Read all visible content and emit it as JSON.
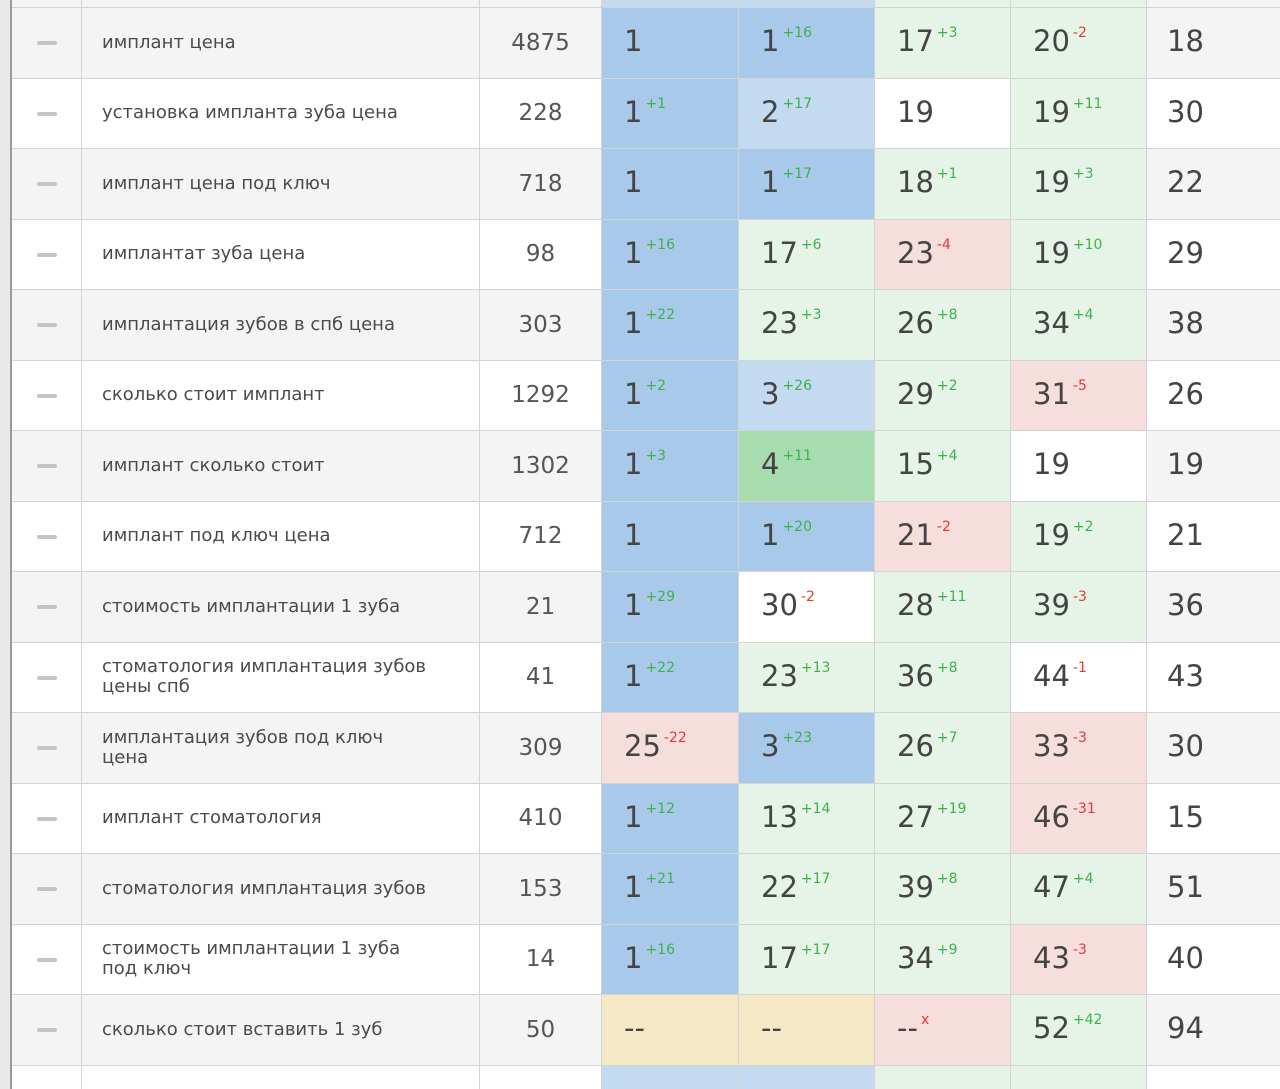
{
  "table": {
    "rows": [
      {
        "keyword": [
          "имплант цена"
        ],
        "frequency": "4875",
        "positions": [
          {
            "value": "1",
            "delta": "",
            "bg": "blue"
          },
          {
            "value": "1",
            "delta": "+16",
            "bg": "blue"
          },
          {
            "value": "17",
            "delta": "+3",
            "bg": "lightgreen"
          },
          {
            "value": "20",
            "delta": "-2",
            "bg": "lightgreen"
          }
        ],
        "last": "18"
      },
      {
        "keyword": [
          "установка импланта зуба цена"
        ],
        "frequency": "228",
        "positions": [
          {
            "value": "1",
            "delta": "+1",
            "bg": "blue"
          },
          {
            "value": "2",
            "delta": "+17",
            "bg": "lightblue"
          },
          {
            "value": "19",
            "delta": "",
            "bg": "white"
          },
          {
            "value": "19",
            "delta": "+11",
            "bg": "lightgreen"
          }
        ],
        "last": "30"
      },
      {
        "keyword": [
          "имплант цена под ключ"
        ],
        "frequency": "718",
        "positions": [
          {
            "value": "1",
            "delta": "",
            "bg": "blue"
          },
          {
            "value": "1",
            "delta": "+17",
            "bg": "blue"
          },
          {
            "value": "18",
            "delta": "+1",
            "bg": "lightgreen"
          },
          {
            "value": "19",
            "delta": "+3",
            "bg": "lightgreen"
          }
        ],
        "last": "22"
      },
      {
        "keyword": [
          "имплантат зуба цена"
        ],
        "frequency": "98",
        "positions": [
          {
            "value": "1",
            "delta": "+16",
            "bg": "blue"
          },
          {
            "value": "17",
            "delta": "+6",
            "bg": "lightgreen"
          },
          {
            "value": "23",
            "delta": "-4",
            "bg": "pink"
          },
          {
            "value": "19",
            "delta": "+10",
            "bg": "lightgreen"
          }
        ],
        "last": "29"
      },
      {
        "keyword": [
          "имплантация зубов в спб цена"
        ],
        "frequency": "303",
        "positions": [
          {
            "value": "1",
            "delta": "+22",
            "bg": "blue"
          },
          {
            "value": "23",
            "delta": "+3",
            "bg": "lightgreen"
          },
          {
            "value": "26",
            "delta": "+8",
            "bg": "lightgreen"
          },
          {
            "value": "34",
            "delta": "+4",
            "bg": "lightgreen"
          }
        ],
        "last": "38"
      },
      {
        "keyword": [
          "сколько стоит имплант"
        ],
        "frequency": "1292",
        "positions": [
          {
            "value": "1",
            "delta": "+2",
            "bg": "blue"
          },
          {
            "value": "3",
            "delta": "+26",
            "bg": "lightblue"
          },
          {
            "value": "29",
            "delta": "+2",
            "bg": "lightgreen"
          },
          {
            "value": "31",
            "delta": "-5",
            "bg": "pink"
          }
        ],
        "last": "26"
      },
      {
        "keyword": [
          "имплант сколько стоит"
        ],
        "frequency": "1302",
        "positions": [
          {
            "value": "1",
            "delta": "+3",
            "bg": "blue"
          },
          {
            "value": "4",
            "delta": "+11",
            "bg": "green"
          },
          {
            "value": "15",
            "delta": "+4",
            "bg": "lightgreen"
          },
          {
            "value": "19",
            "delta": "",
            "bg": "white"
          }
        ],
        "last": "19"
      },
      {
        "keyword": [
          "имплант под ключ цена"
        ],
        "frequency": "712",
        "positions": [
          {
            "value": "1",
            "delta": "",
            "bg": "blue"
          },
          {
            "value": "1",
            "delta": "+20",
            "bg": "blue"
          },
          {
            "value": "21",
            "delta": "-2",
            "bg": "pink"
          },
          {
            "value": "19",
            "delta": "+2",
            "bg": "lightgreen"
          }
        ],
        "last": "21"
      },
      {
        "keyword": [
          "стоимость имплантации 1 зуба"
        ],
        "frequency": "21",
        "positions": [
          {
            "value": "1",
            "delta": "+29",
            "bg": "blue"
          },
          {
            "value": "30",
            "delta": "-2",
            "bg": "white"
          },
          {
            "value": "28",
            "delta": "+11",
            "bg": "lightgreen"
          },
          {
            "value": "39",
            "delta": "-3",
            "bg": "lightgreen"
          }
        ],
        "last": "36"
      },
      {
        "keyword": [
          "стоматология имплантация зубов",
          "цены спб"
        ],
        "frequency": "41",
        "positions": [
          {
            "value": "1",
            "delta": "+22",
            "bg": "blue"
          },
          {
            "value": "23",
            "delta": "+13",
            "bg": "lightgreen"
          },
          {
            "value": "36",
            "delta": "+8",
            "bg": "lightgreen"
          },
          {
            "value": "44",
            "delta": "-1",
            "bg": "white"
          }
        ],
        "last": "43"
      },
      {
        "keyword": [
          "имплантация зубов под ключ",
          "цена"
        ],
        "frequency": "309",
        "positions": [
          {
            "value": "25",
            "delta": "-22",
            "bg": "pink"
          },
          {
            "value": "3",
            "delta": "+23",
            "bg": "blue"
          },
          {
            "value": "26",
            "delta": "+7",
            "bg": "lightgreen"
          },
          {
            "value": "33",
            "delta": "-3",
            "bg": "pink"
          }
        ],
        "last": "30"
      },
      {
        "keyword": [
          "имплант стоматология"
        ],
        "frequency": "410",
        "positions": [
          {
            "value": "1",
            "delta": "+12",
            "bg": "blue"
          },
          {
            "value": "13",
            "delta": "+14",
            "bg": "lightgreen"
          },
          {
            "value": "27",
            "delta": "+19",
            "bg": "lightgreen"
          },
          {
            "value": "46",
            "delta": "-31",
            "bg": "pink"
          }
        ],
        "last": "15"
      },
      {
        "keyword": [
          "стоматология имплантация зубов"
        ],
        "frequency": "153",
        "positions": [
          {
            "value": "1",
            "delta": "+21",
            "bg": "blue"
          },
          {
            "value": "22",
            "delta": "+17",
            "bg": "lightgreen"
          },
          {
            "value": "39",
            "delta": "+8",
            "bg": "lightgreen"
          },
          {
            "value": "47",
            "delta": "+4",
            "bg": "lightgreen"
          }
        ],
        "last": "51"
      },
      {
        "keyword": [
          "стоимость имплантации 1 зуба",
          "под ключ"
        ],
        "frequency": "14",
        "positions": [
          {
            "value": "1",
            "delta": "+16",
            "bg": "blue"
          },
          {
            "value": "17",
            "delta": "+17",
            "bg": "lightgreen"
          },
          {
            "value": "34",
            "delta": "+9",
            "bg": "lightgreen"
          },
          {
            "value": "43",
            "delta": "-3",
            "bg": "pink"
          }
        ],
        "last": "40"
      },
      {
        "keyword": [
          "сколько стоит вставить 1 зуб"
        ],
        "frequency": "50",
        "positions": [
          {
            "value": "--",
            "delta": "",
            "bg": "yellow"
          },
          {
            "value": "--",
            "delta": "",
            "bg": "yellow"
          },
          {
            "value": "--",
            "delta": "x",
            "bg": "pink"
          },
          {
            "value": "52",
            "delta": "+42",
            "bg": "lightgreen"
          }
        ],
        "last": "94"
      }
    ]
  }
}
